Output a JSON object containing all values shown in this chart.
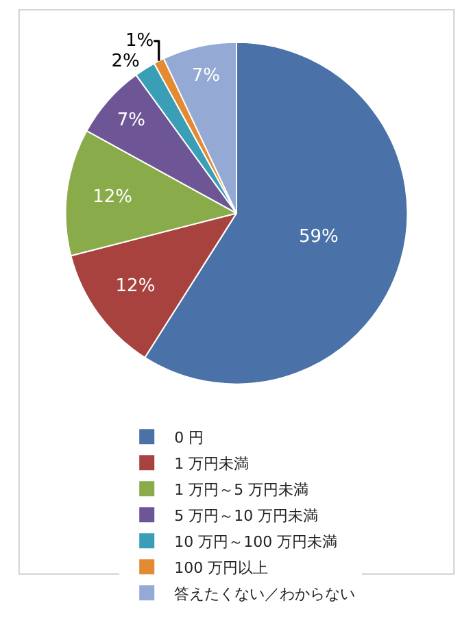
{
  "chart_data": {
    "type": "pie",
    "categories": [
      "0 円",
      "1 万円未満",
      "1 万円～5 万円未満",
      "5 万円～10 万円未満",
      "10 万円～100 万円未満",
      "100 万円以上",
      "答えたくない／わからない"
    ],
    "values": [
      59,
      12,
      12,
      7,
      2,
      1,
      7
    ],
    "value_labels": [
      "59%",
      "12%",
      "12%",
      "7%",
      "2%",
      "1%",
      "7%"
    ],
    "colors": [
      "#4a72a8",
      "#a8423f",
      "#8aab4a",
      "#6e5596",
      "#3a9fb6",
      "#e38b33",
      "#94a9d4"
    ],
    "legend": "bottom"
  }
}
